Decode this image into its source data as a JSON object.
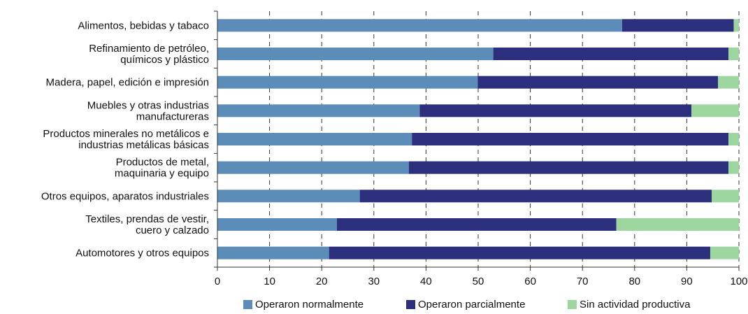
{
  "chart_data": {
    "type": "bar",
    "orientation": "horizontal",
    "stacked": true,
    "title": "",
    "xlabel": "",
    "ylabel": "",
    "xlim": [
      0,
      100
    ],
    "xticks": [
      0,
      10,
      20,
      30,
      40,
      50,
      60,
      70,
      80,
      90,
      100
    ],
    "grid": "vertical dashed",
    "legend_position": "bottom",
    "categories": [
      [
        "Alimentos, bebidas y tabaco"
      ],
      [
        "Refinamiento de petróleo,",
        "químicos y plástico"
      ],
      [
        "Madera, papel, edición e impresión"
      ],
      [
        "Muebles y otras industrias",
        "manufactureras"
      ],
      [
        "Productos minerales no metálicos e",
        "industrias metálicas básicas"
      ],
      [
        "Productos de metal,",
        "maquinaria y equipo"
      ],
      [
        "Otros equipos, aparatos industriales"
      ],
      [
        "Textiles, prendas de vestir,",
        "cuero y calzado"
      ],
      [
        "Automotores y otros equipos"
      ]
    ],
    "series": [
      {
        "name": "Operaron normalmente",
        "color": "#5B8DB8",
        "values": [
          77.6,
          52.9,
          49.9,
          38.8,
          37.3,
          36.7,
          27.3,
          22.9,
          21.4
        ]
      },
      {
        "name": "Operaron parcialmente",
        "color": "#2B2F7E",
        "values": [
          21.4,
          45.1,
          46.1,
          52.1,
          60.7,
          61.3,
          67.5,
          53.6,
          73.1
        ]
      },
      {
        "name": "Sin actividad productiva",
        "color": "#9ED6A0",
        "values": [
          1.0,
          2.0,
          4.0,
          9.1,
          2.0,
          2.0,
          5.2,
          23.5,
          5.5
        ]
      }
    ]
  }
}
